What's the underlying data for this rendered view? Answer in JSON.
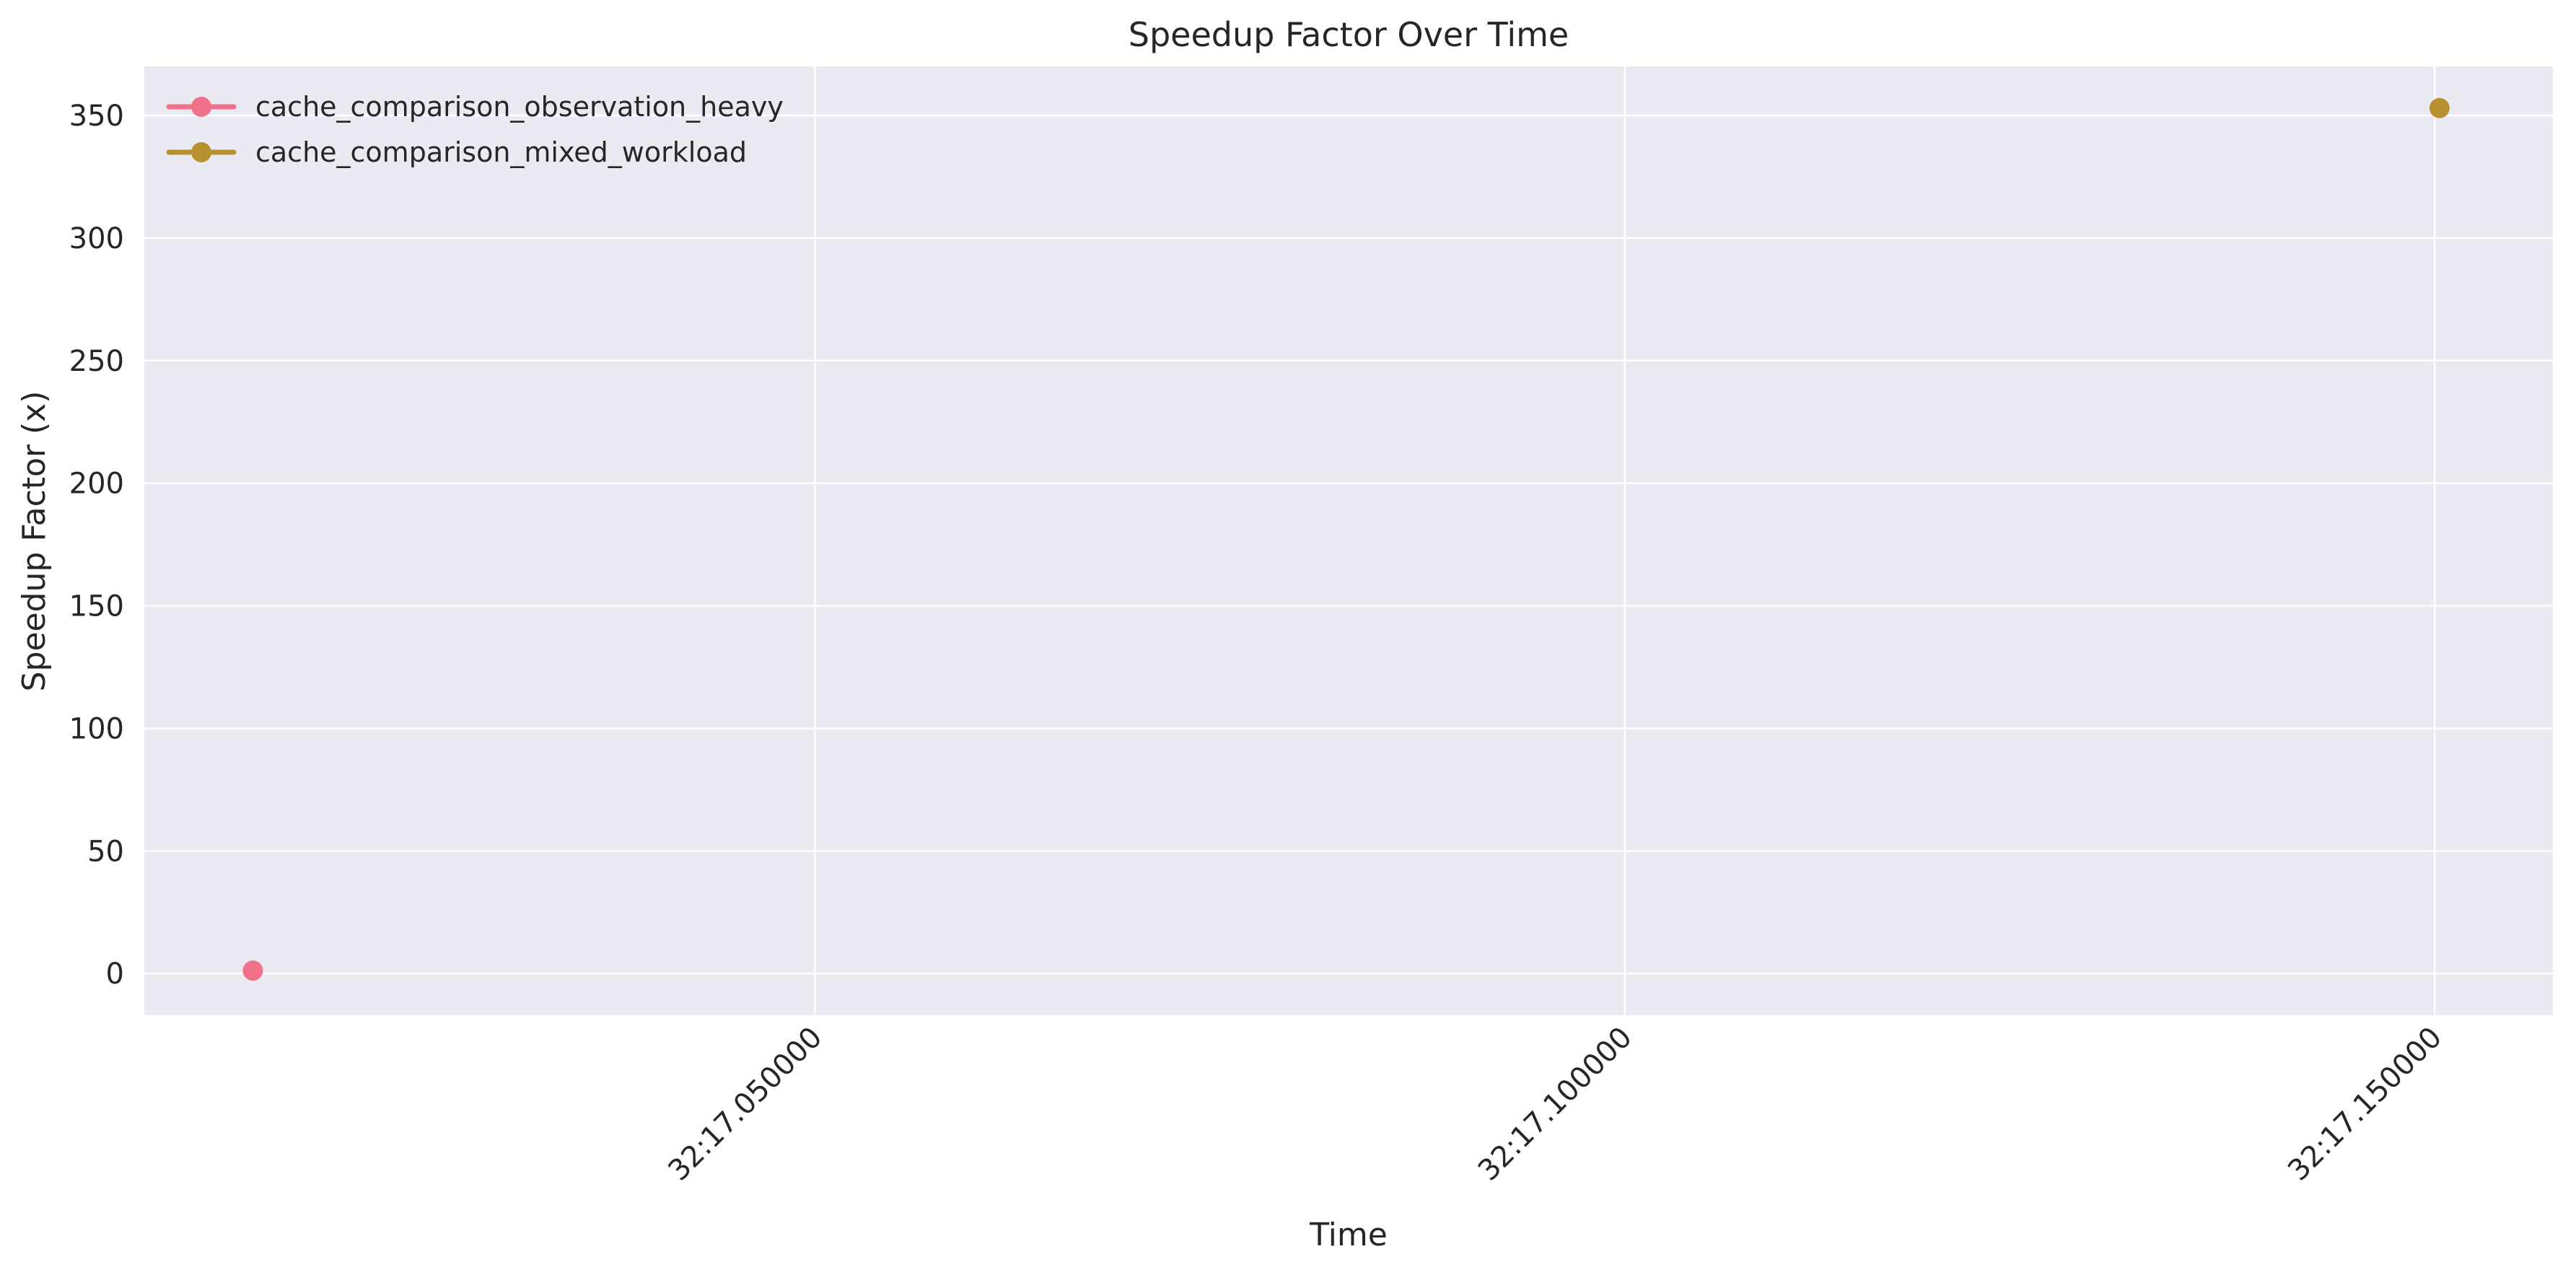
{
  "chart_data": {
    "type": "scatter",
    "title": "Speedup Factor Over Time",
    "xlabel": "Time",
    "ylabel": "Speedup Factor (x)",
    "x_ticks": [
      "32:17.050000",
      "32:17.100000",
      "32:17.150000"
    ],
    "y_ticks": [
      "0",
      "50",
      "100",
      "150",
      "200",
      "250",
      "300",
      "350"
    ],
    "xlim": [
      "32:17.008600",
      "32:17.157300"
    ],
    "ylim": [
      -17,
      370
    ],
    "grid": true,
    "legend_position": "top-left",
    "series": [
      {
        "name": "cache_comparison_observation_heavy",
        "color": "#f0718a",
        "points": [
          {
            "x": "32:17.015300",
            "y": 1.2
          }
        ]
      },
      {
        "name": "cache_comparison_mixed_workload",
        "color": "#b8902f",
        "points": [
          {
            "x": "32:17.150300",
            "y": 353
          }
        ]
      }
    ],
    "background_color": "#eaeaf2"
  }
}
